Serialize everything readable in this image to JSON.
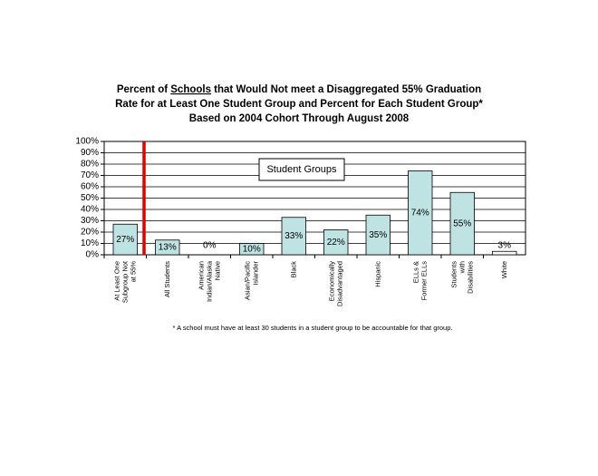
{
  "chart_data": {
    "type": "bar",
    "title": [
      [
        "Percent of ",
        "Schools",
        " that Would Not meet a Disaggregated 55% Graduation"
      ],
      [
        "Rate for at Least One Student Group and Percent for Each Student Group*"
      ],
      [
        "Based on 2004 Cohort Through August 2008"
      ]
    ],
    "annotation": "Student Groups",
    "footnote": "* A school must have at least 30 students in a student group to be accountable for that group.",
    "categories": [
      "At Least One Subgroup Not at 55%",
      "All Students",
      "American Indian/Alaska Native",
      "Asian/Pacific Islander",
      "Black",
      "Economically Disadvantaged",
      "Hispanic",
      "ELLs & Former ELLs",
      "Students with Disabilities",
      "White"
    ],
    "values": [
      27,
      13,
      0,
      10,
      33,
      22,
      35,
      74,
      55,
      3
    ],
    "value_labels": [
      "27%",
      "13%",
      "0%",
      "10%",
      "33%",
      "22%",
      "35%",
      "74%",
      "55%",
      "3%"
    ],
    "colors": [
      "#bfe3e3",
      "#bfe3e3",
      "#bfe3e3",
      "#bfe3e3",
      "#bfe3e3",
      "#bfe3e3",
      "#bfe3e3",
      "#bfe3e3",
      "#bfe3e3",
      "#ffffff"
    ],
    "ylim": [
      0,
      100
    ],
    "yticks": [
      {
        "value": 0,
        "label": "0%"
      },
      {
        "value": 10,
        "label": "10%"
      },
      {
        "value": 20,
        "label": "20%"
      },
      {
        "value": 30,
        "label": "30%"
      },
      {
        "value": 40,
        "label": "40%"
      },
      {
        "value": 50,
        "label": "50%"
      },
      {
        "value": 60,
        "label": "60%"
      },
      {
        "value": 70,
        "label": "70%"
      },
      {
        "value": 80,
        "label": "80%"
      },
      {
        "value": 90,
        "label": "90%"
      },
      {
        "value": 100,
        "label": "100%"
      }
    ],
    "grid": true
  }
}
